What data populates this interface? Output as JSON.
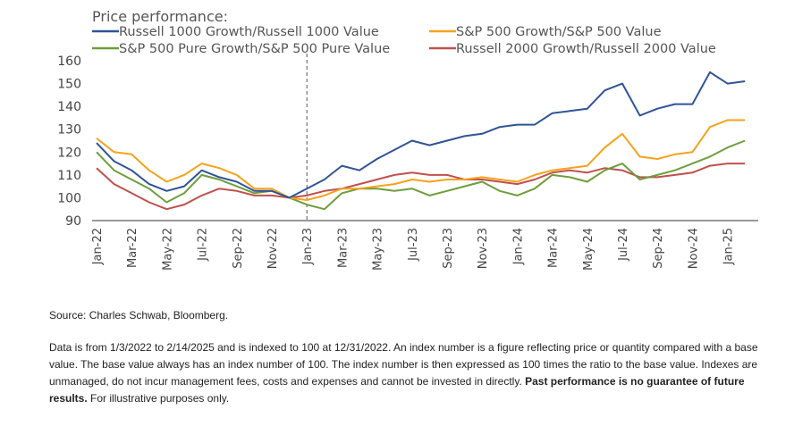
{
  "chart_data": {
    "type": "line",
    "legend_title": "Price performance:",
    "legend_position": "top",
    "ylim": [
      90,
      160
    ],
    "yticks": [
      90,
      100,
      110,
      120,
      130,
      140,
      150,
      160
    ],
    "grid": false,
    "x_start": "2022-01-03",
    "x_end": "2025-02-14",
    "xticks": [
      "Jan-22",
      "Mar-22",
      "May-22",
      "Jul-22",
      "Sep-22",
      "Nov-22",
      "Jan-23",
      "Mar-23",
      "May-23",
      "Jul-23",
      "Sep-23",
      "Nov-23",
      "Jan-24",
      "Mar-24",
      "May-24",
      "Jul-24",
      "Sep-24",
      "Nov-24",
      "Jan-25"
    ],
    "vertical_marker": "Jan-23",
    "series": [
      {
        "name": "Russell 1000 Growth/Russell 1000 Value",
        "color": "#2f5496",
        "x": [
          "Jan-22",
          "Feb-22",
          "Mar-22",
          "Apr-22",
          "May-22",
          "Jun-22",
          "Jul-22",
          "Aug-22",
          "Sep-22",
          "Oct-22",
          "Nov-22",
          "Dec-22",
          "Jan-23",
          "Feb-23",
          "Mar-23",
          "Apr-23",
          "May-23",
          "Jun-23",
          "Jul-23",
          "Aug-23",
          "Sep-23",
          "Oct-23",
          "Nov-23",
          "Dec-23",
          "Jan-24",
          "Feb-24",
          "Mar-24",
          "Apr-24",
          "May-24",
          "Jun-24",
          "Jul-24",
          "Aug-24",
          "Sep-24",
          "Oct-24",
          "Nov-24",
          "Dec-24",
          "Jan-25",
          "Feb-25"
        ],
        "y": [
          124,
          116,
          112,
          106,
          103,
          105,
          112,
          109,
          107,
          103,
          103,
          100,
          104,
          108,
          114,
          112,
          117,
          121,
          125,
          123,
          125,
          127,
          128,
          131,
          132,
          132,
          137,
          138,
          139,
          147,
          150,
          136,
          139,
          141,
          141,
          155,
          150,
          151
        ]
      },
      {
        "name": "S&P 500 Growth/S&P 500 Value",
        "color": "#f5a21b",
        "x": [
          "Jan-22",
          "Feb-22",
          "Mar-22",
          "Apr-22",
          "May-22",
          "Jun-22",
          "Jul-22",
          "Aug-22",
          "Sep-22",
          "Oct-22",
          "Nov-22",
          "Dec-22",
          "Jan-23",
          "Feb-23",
          "Mar-23",
          "Apr-23",
          "May-23",
          "Jun-23",
          "Jul-23",
          "Aug-23",
          "Sep-23",
          "Oct-23",
          "Nov-23",
          "Dec-23",
          "Jan-24",
          "Feb-24",
          "Mar-24",
          "Apr-24",
          "May-24",
          "Jun-24",
          "Jul-24",
          "Aug-24",
          "Sep-24",
          "Oct-24",
          "Nov-24",
          "Dec-24",
          "Jan-25",
          "Feb-25"
        ],
        "y": [
          126,
          120,
          119,
          112,
          107,
          110,
          115,
          113,
          110,
          104,
          104,
          100,
          99,
          101,
          104,
          104,
          105,
          106,
          108,
          107,
          108,
          108,
          109,
          108,
          107,
          110,
          112,
          113,
          114,
          122,
          128,
          118,
          117,
          119,
          120,
          131,
          134,
          134
        ]
      },
      {
        "name": "S&P 500 Pure Growth/S&P 500 Pure Value",
        "color": "#6d9e3c",
        "x": [
          "Jan-22",
          "Feb-22",
          "Mar-22",
          "Apr-22",
          "May-22",
          "Jun-22",
          "Jul-22",
          "Aug-22",
          "Sep-22",
          "Oct-22",
          "Nov-22",
          "Dec-22",
          "Jan-23",
          "Feb-23",
          "Mar-23",
          "Apr-23",
          "May-23",
          "Jun-23",
          "Jul-23",
          "Aug-23",
          "Sep-23",
          "Oct-23",
          "Nov-23",
          "Dec-23",
          "Jan-24",
          "Feb-24",
          "Mar-24",
          "Apr-24",
          "May-24",
          "Jun-24",
          "Jul-24",
          "Aug-24",
          "Sep-24",
          "Oct-24",
          "Nov-24",
          "Dec-24",
          "Jan-25",
          "Feb-25"
        ],
        "y": [
          120,
          112,
          108,
          104,
          98,
          102,
          110,
          108,
          105,
          102,
          103,
          100,
          97,
          95,
          102,
          104,
          104,
          103,
          104,
          101,
          103,
          105,
          107,
          103,
          101,
          104,
          110,
          109,
          107,
          112,
          115,
          108,
          110,
          112,
          115,
          118,
          122,
          125
        ]
      },
      {
        "name": "Russell 2000 Growth/Russell 2000 Value",
        "color": "#c0504d",
        "x": [
          "Jan-22",
          "Feb-22",
          "Mar-22",
          "Apr-22",
          "May-22",
          "Jun-22",
          "Jul-22",
          "Aug-22",
          "Sep-22",
          "Oct-22",
          "Nov-22",
          "Dec-22",
          "Jan-23",
          "Feb-23",
          "Mar-23",
          "Apr-23",
          "May-23",
          "Jun-23",
          "Jul-23",
          "Aug-23",
          "Sep-23",
          "Oct-23",
          "Nov-23",
          "Dec-23",
          "Jan-24",
          "Feb-24",
          "Mar-24",
          "Apr-24",
          "May-24",
          "Jun-24",
          "Jul-24",
          "Aug-24",
          "Sep-24",
          "Oct-24",
          "Nov-24",
          "Dec-24",
          "Jan-25",
          "Feb-25"
        ],
        "y": [
          113,
          106,
          102,
          98,
          95,
          97,
          101,
          104,
          103,
          101,
          101,
          100,
          101,
          103,
          104,
          106,
          108,
          110,
          111,
          110,
          110,
          108,
          108,
          107,
          106,
          108,
          111,
          112,
          111,
          113,
          112,
          109,
          109,
          110,
          111,
          114,
          115,
          115
        ]
      }
    ]
  },
  "notes": {
    "source": "Source: Charles Schwab, Bloomberg.",
    "data_note": "Data is from 1/3/2022 to 2/14/2025 and is indexed to 100 at 12/31/2022. An index number is a figure reflecting price or quantity compared with a base value. The base value always has an index number of 100. The index number is then expressed as 100 times the ratio to the base value. Indexes are unmanaged, do not incur management fees, costs and expenses and cannot be invested in directly.",
    "disclaimer_bold": "Past performance is no guarantee of future results.",
    "disclaimer_rest": " For illustrative purposes only."
  }
}
